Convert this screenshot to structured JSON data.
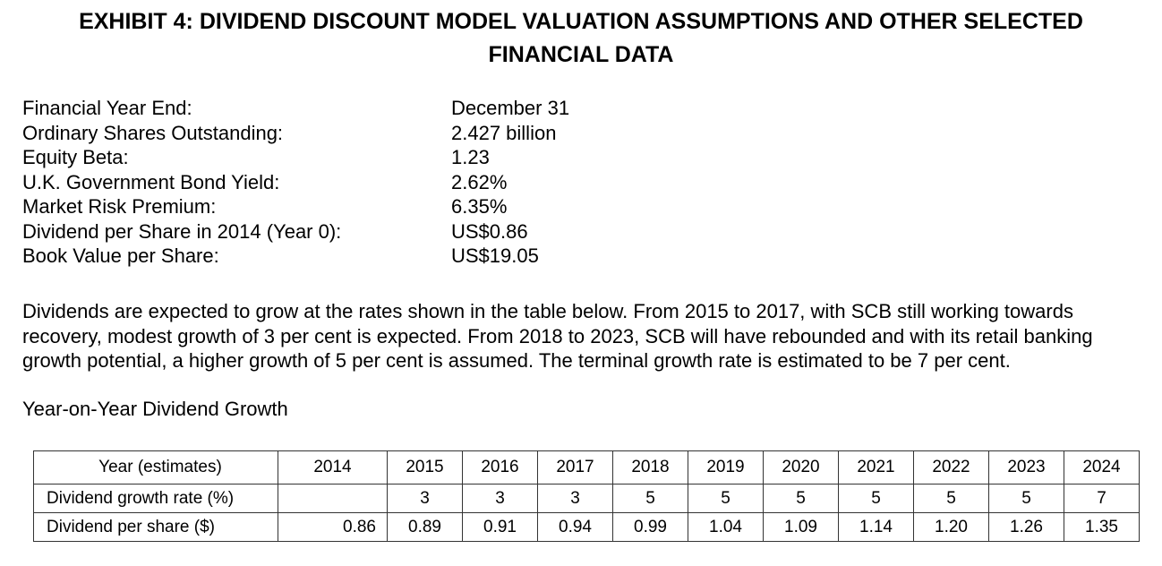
{
  "title": {
    "line1": "EXHIBIT 4: DIVIDEND DISCOUNT MODEL VALUATION ASSUMPTIONS AND OTHER SELECTED",
    "line2": "FINANCIAL DATA"
  },
  "assumptions": [
    {
      "label": "Financial Year End:",
      "value": "December 31"
    },
    {
      "label": "Ordinary Shares Outstanding:",
      "value": "2.427 billion"
    },
    {
      "label": "Equity Beta:",
      "value": "1.23"
    },
    {
      "label": "U.K. Government Bond Yield:",
      "value": "2.62%"
    },
    {
      "label": "Market Risk Premium:",
      "value": "6.35%"
    },
    {
      "label": "Dividend per Share in 2014 (Year 0):",
      "value": "US$0.86"
    },
    {
      "label": "Book Value per Share:",
      "value": "US$19.05"
    }
  ],
  "paragraph": "Dividends are expected to grow at the rates shown in the table below. From 2015 to 2017, with SCB still working towards recovery, modest growth of 3 per cent is expected. From 2018 to 2023, SCB will have rebounded and with its retail banking growth potential, a higher growth of 5 per cent is assumed. The terminal growth rate is estimated to be 7 per cent.",
  "subheading": "Year-on-Year Dividend Growth",
  "table": {
    "header_label": "Year (estimates)",
    "years": [
      "2014",
      "2015",
      "2016",
      "2017",
      "2018",
      "2019",
      "2020",
      "2021",
      "2022",
      "2023",
      "2024"
    ],
    "growth_label": "Dividend growth rate (%)",
    "growth_rates": [
      "",
      "3",
      "3",
      "3",
      "5",
      "5",
      "5",
      "5",
      "5",
      "5",
      "7"
    ],
    "dps_label": "Dividend per share ($)",
    "dps": [
      "0.86",
      "0.89",
      "0.91",
      "0.94",
      "0.99",
      "1.04",
      "1.09",
      "1.14",
      "1.20",
      "1.26",
      "1.35"
    ]
  }
}
